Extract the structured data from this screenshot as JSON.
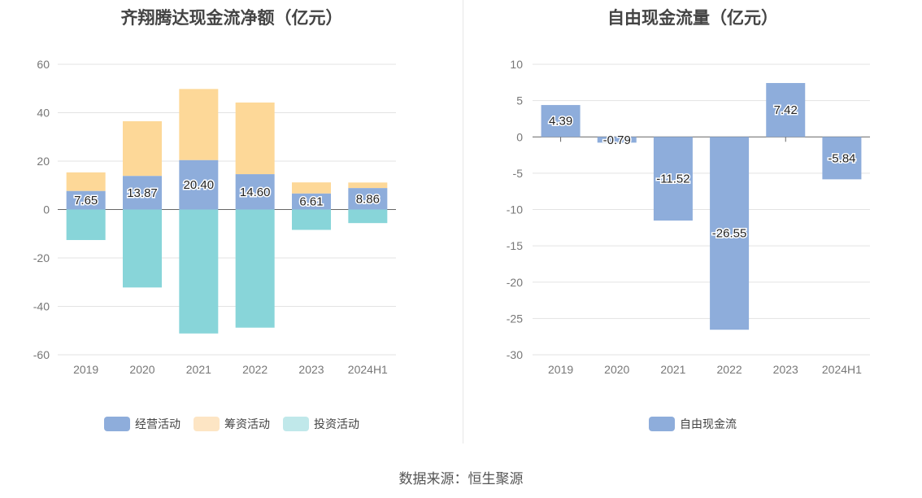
{
  "colors": {
    "operating": "#8eaddb",
    "financing": "#fdd898",
    "investing": "#88d5d9",
    "free_cash_flow": "#8eaddb",
    "legend_financing": "#fde5c4",
    "legend_investing": "#c0e8ea"
  },
  "source": "数据来源：恒生聚源",
  "chart_data": [
    {
      "type": "bar",
      "stacked": true,
      "title": "齐翔腾达现金流净额（亿元）",
      "categories": [
        "2019",
        "2020",
        "2021",
        "2022",
        "2023",
        "2024H1"
      ],
      "ylim": [
        -60,
        60
      ],
      "yticks": [
        60,
        40,
        20,
        0,
        -20,
        -40,
        -60
      ],
      "grid": true,
      "legend_position": "bottom",
      "series": [
        {
          "name": "经营活动",
          "color_key": "operating",
          "values": [
            7.65,
            13.87,
            20.4,
            14.6,
            6.61,
            8.86
          ],
          "labels": [
            "7.65",
            "13.87",
            "20.40",
            "14.60",
            "6.61",
            "8.86"
          ]
        },
        {
          "name": "筹资活动",
          "color_key": "financing",
          "values": [
            7.7,
            22.6,
            29.4,
            29.6,
            4.6,
            2.3
          ]
        },
        {
          "name": "投资活动",
          "color_key": "investing",
          "values": [
            -12.6,
            -32.2,
            -51.2,
            -48.8,
            -8.4,
            -5.6
          ]
        }
      ]
    },
    {
      "type": "bar",
      "title": "自由现金流量（亿元）",
      "categories": [
        "2019",
        "2020",
        "2021",
        "2022",
        "2023",
        "2024H1"
      ],
      "ylim": [
        -30,
        10
      ],
      "yticks": [
        10,
        5,
        0,
        -5,
        -10,
        -15,
        -20,
        -25,
        -30
      ],
      "grid": true,
      "legend_position": "bottom",
      "series": [
        {
          "name": "自由现金流",
          "color_key": "free_cash_flow",
          "values": [
            4.39,
            -0.79,
            -11.52,
            -26.55,
            7.42,
            -5.84
          ],
          "labels": [
            "4.39",
            "-0.79",
            "-11.52",
            "-26.55",
            "7.42",
            "-5.84"
          ]
        }
      ]
    }
  ]
}
